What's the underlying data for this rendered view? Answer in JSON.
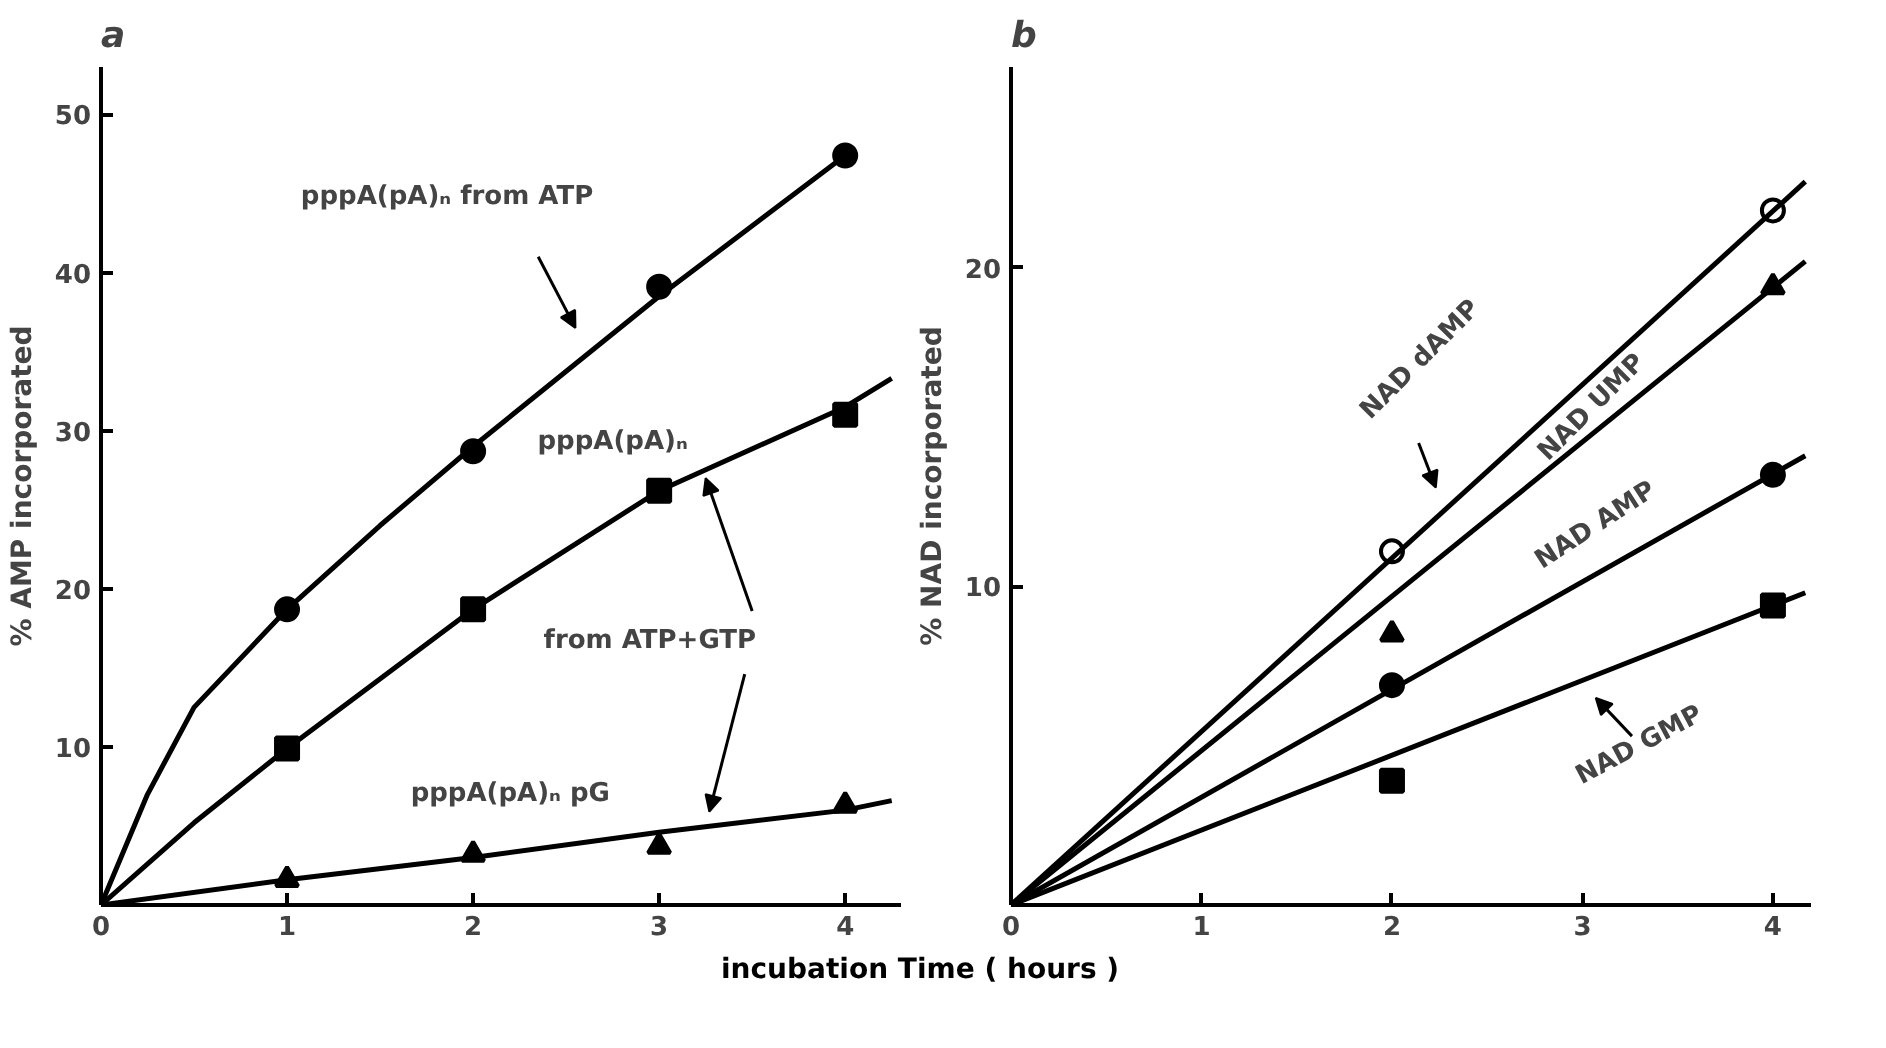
{
  "chart_data": [
    {
      "type": "scatter",
      "title": "a",
      "ylabel": "% AMP incorporated",
      "xlabel": "incubation Time ( hours )",
      "xlim": [
        0,
        4.3
      ],
      "ylim": [
        0,
        53
      ],
      "xticks": [
        0,
        1,
        2,
        3,
        4
      ],
      "yticks": [
        10,
        20,
        30,
        40,
        50
      ],
      "grid": false,
      "series": [
        {
          "marker": "circle",
          "color": "#000000",
          "x": [
            1,
            2,
            3,
            4
          ],
          "values": [
            18.7,
            28.7,
            39.1,
            47.4
          ]
        },
        {
          "marker": "square",
          "color": "#000000",
          "x": [
            1,
            2,
            3,
            4
          ],
          "values": [
            9.9,
            18.7,
            26.2,
            31.0
          ]
        },
        {
          "marker": "triangle",
          "color": "#000000",
          "x": [
            1,
            2,
            3,
            4
          ],
          "values": [
            1.6,
            3.2,
            3.7,
            6.3
          ]
        },
        {
          "type": "line",
          "color": "#000000",
          "x": [
            0,
            0.25,
            0.5,
            1,
            1.5,
            2,
            3,
            4
          ],
          "values": [
            0,
            7,
            12.5,
            18.7,
            24,
            29,
            38.5,
            47.4
          ]
        },
        {
          "type": "line",
          "color": "#000000",
          "x": [
            0,
            0.5,
            1,
            2,
            3,
            4,
            4.25
          ],
          "values": [
            0,
            5.2,
            9.9,
            18.7,
            26.2,
            31.5,
            33.3
          ]
        },
        {
          "type": "line",
          "color": "#000000",
          "x": [
            0,
            1,
            2,
            3,
            4,
            4.25
          ],
          "values": [
            0,
            1.6,
            3,
            4.6,
            6.0,
            6.6
          ]
        }
      ],
      "annotations": [
        "pppA(pA)ₙ from ATP",
        "pppA(pA)ₙ",
        {
          "text": "from ATP+GTP",
          "x": 3.25,
          "y": 27.0
        },
        "pppA(pA)ₙ pG"
      ]
    },
    {
      "type": "scatter",
      "title": "b",
      "ylabel": "% NAD incorporated",
      "xlim": [
        0,
        4.2
      ],
      "ylim": [
        0,
        26.3
      ],
      "xticks": [
        0,
        1,
        2,
        3,
        4
      ],
      "yticks": [
        10,
        20
      ],
      "grid": false,
      "series": [
        {
          "marker": "circle",
          "color": "#ffffff",
          "x": [
            2,
            4
          ],
          "values": [
            11.1,
            21.8
          ]
        },
        {
          "marker": "triangle",
          "color": "#000000",
          "x": [
            2,
            4
          ],
          "values": [
            8.5,
            19.4
          ]
        },
        {
          "marker": "circle",
          "color": "#000000",
          "x": [
            2,
            4
          ],
          "values": [
            6.9,
            13.5
          ]
        },
        {
          "marker": "square",
          "color": "#000000",
          "x": [
            2,
            4
          ],
          "values": [
            3.9,
            9.4
          ]
        },
        {
          "type": "line",
          "color": "#000000",
          "x": [
            0,
            4.17
          ],
          "values": [
            0,
            22.7
          ]
        },
        {
          "type": "line",
          "color": "#000000",
          "x": [
            0,
            4.17
          ],
          "values": [
            0,
            20.2
          ]
        },
        {
          "type": "line",
          "color": "#000000",
          "x": [
            0,
            4.17
          ],
          "values": [
            0,
            14.1
          ]
        },
        {
          "type": "line",
          "color": "#000000",
          "x": [
            0,
            4.17
          ],
          "values": [
            0,
            9.8
          ]
        }
      ],
      "annotations": [
        "NAD dAMP",
        "NAD UMP",
        "NAD AMP",
        "NAD GMP"
      ]
    }
  ]
}
